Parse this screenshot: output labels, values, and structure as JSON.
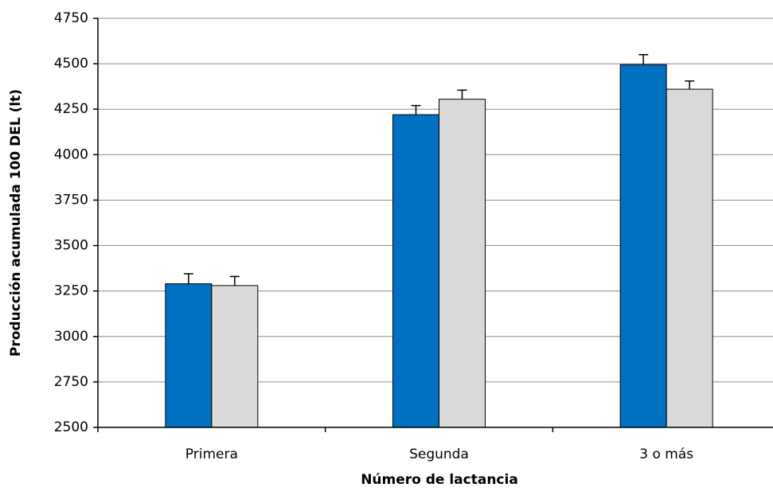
{
  "chart_data": {
    "type": "bar",
    "x_label": "Número de lactancia",
    "y_label": "Producción acumulada 100 DEL (lt)",
    "categories": [
      "Primera",
      "Segunda",
      "3 o más"
    ],
    "series": [
      {
        "color": "#0070c0",
        "values": [
          3290,
          4220,
          4495
        ],
        "errors": [
          55,
          50,
          55
        ]
      },
      {
        "color": "#d9d9d9",
        "values": [
          3280,
          4305,
          4360
        ],
        "errors": [
          50,
          50,
          45
        ]
      }
    ],
    "ylim": [
      2500,
      4750
    ],
    "yticks": [
      2500,
      2750,
      3000,
      3250,
      3500,
      3750,
      4000,
      4250,
      4500,
      4750
    ],
    "grid": true
  }
}
